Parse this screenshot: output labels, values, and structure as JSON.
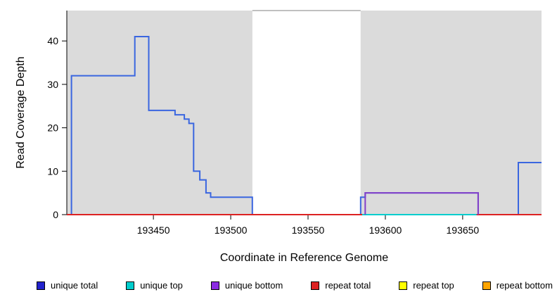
{
  "figure": {
    "background": "#ffffff",
    "plot_background_shaded": "#DBDBDB"
  },
  "chart_data": {
    "type": "line",
    "subtype": "step-coverage",
    "title": "",
    "xlabel": "Coordinate in Reference Genome",
    "ylabel": "Read Coverage Depth",
    "xlim": [
      193394,
      193701
    ],
    "ylim": [
      0,
      47
    ],
    "xticks": [
      193450,
      193500,
      193550,
      193600,
      193650
    ],
    "yticks": [
      0,
      10,
      20,
      30,
      40
    ],
    "grid": false,
    "legend_position": "bottom",
    "shaded_regions": [
      {
        "x0": 193394,
        "x1": 193514,
        "color": "#DBDBDB"
      },
      {
        "x0": 193584,
        "x1": 193701,
        "color": "#DBDBDB"
      }
    ],
    "gap_top_border": {
      "x0": 193514,
      "x1": 193584,
      "color": "#808080"
    },
    "series": [
      {
        "name": "unique total",
        "color": "#3A66E0",
        "points": [
          [
            193397,
            0
          ],
          [
            193397,
            32
          ],
          [
            193438,
            32
          ],
          [
            193438,
            41
          ],
          [
            193447,
            41
          ],
          [
            193447,
            24
          ],
          [
            193464,
            24
          ],
          [
            193464,
            23
          ],
          [
            193470,
            23
          ],
          [
            193470,
            22
          ],
          [
            193473,
            22
          ],
          [
            193473,
            21
          ],
          [
            193476,
            21
          ],
          [
            193476,
            10
          ],
          [
            193480,
            10
          ],
          [
            193480,
            8
          ],
          [
            193484,
            8
          ],
          [
            193484,
            5
          ],
          [
            193487,
            5
          ],
          [
            193487,
            4
          ],
          [
            193514,
            4
          ],
          [
            193514,
            0
          ],
          [
            193584,
            0
          ],
          [
            193584,
            4
          ],
          [
            193587,
            4
          ],
          [
            193587,
            5
          ],
          [
            193660,
            5
          ],
          [
            193660,
            0
          ],
          [
            193686,
            0
          ],
          [
            193686,
            12
          ],
          [
            193701,
            12
          ]
        ]
      },
      {
        "name": "repeat total",
        "color": "#DD2222",
        "points": [
          [
            193394,
            0
          ],
          [
            193701,
            0
          ]
        ]
      },
      {
        "name": "unique top",
        "color": "#00CDCD",
        "points": [
          [
            193585,
            0
          ],
          [
            193659,
            0
          ]
        ]
      },
      {
        "name": "unique bottom",
        "color": "#8440C8",
        "points": [
          [
            193587,
            0
          ],
          [
            193587,
            5
          ],
          [
            193660,
            5
          ],
          [
            193660,
            0
          ]
        ]
      }
    ],
    "legend": [
      {
        "label": "unique total",
        "color": "#2222CC"
      },
      {
        "label": "unique top",
        "color": "#00CDCD"
      },
      {
        "label": "unique bottom",
        "color": "#8B2BE2"
      },
      {
        "label": "repeat total",
        "color": "#DD2222"
      },
      {
        "label": "repeat top",
        "color": "#FFFF00"
      },
      {
        "label": "repeat bottom",
        "color": "#FFA500"
      }
    ]
  }
}
